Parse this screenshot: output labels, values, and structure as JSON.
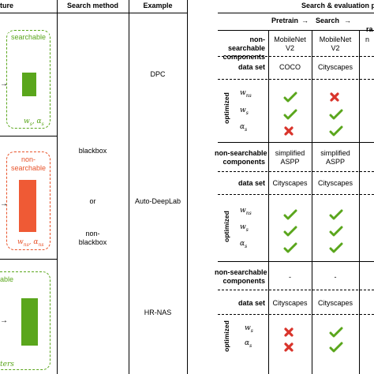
{
  "colors": {
    "green": "#5aa61c",
    "red": "#e8532a",
    "cross": "#d9342b",
    "tick": "#5aa61c"
  },
  "left_table": {
    "headers": {
      "structure": "ture",
      "method": "Search method",
      "example": "Example"
    },
    "rows": [
      {
        "label": "searchable",
        "params": "w_s, α_s",
        "example": "DPC"
      },
      {
        "label": "non-\nsearchable",
        "params": "w_ns, α_ns",
        "example": "Auto-DeepLab"
      },
      {
        "label": "able",
        "params": "ters",
        "example": "HR-NAS"
      }
    ],
    "method_lines": [
      "blackbox",
      "or",
      "non-",
      "blackbox"
    ]
  },
  "right_table": {
    "title": "Search & evaluation p",
    "subheaders": {
      "pretrain": "Pretrain",
      "arrow": "→",
      "search": "Search",
      "arrow2": "→",
      "ra": "ra"
    },
    "blocks": [
      {
        "non_searchable_label": [
          "non-searchable",
          "components"
        ],
        "non_searchable_values": [
          [
            "MobileNet",
            "V2"
          ],
          [
            "MobileNet",
            "V2"
          ],
          [
            "n"
          ]
        ],
        "dataset_label": "data set",
        "dataset_values": [
          "COCO",
          "Cityscapes"
        ],
        "optimized_label": "optimized",
        "params": [
          {
            "sym": "w",
            "sub": "ns",
            "marks": [
              "tick",
              "cross"
            ]
          },
          {
            "sym": "w",
            "sub": "s",
            "marks": [
              "tick",
              "tick"
            ]
          },
          {
            "sym": "α",
            "sub": "s",
            "marks": [
              "cross",
              "tick"
            ]
          }
        ]
      },
      {
        "non_searchable_label": [
          "non-searchable",
          "components"
        ],
        "non_searchable_values": [
          [
            "simplified",
            "ASPP"
          ],
          [
            "simplified",
            "ASPP"
          ]
        ],
        "dataset_label": "data set",
        "dataset_values": [
          "Cityscapes",
          "Cityscapes"
        ],
        "optimized_label": "optimized",
        "params": [
          {
            "sym": "w",
            "sub": "ns",
            "marks": [
              "tick",
              "tick"
            ]
          },
          {
            "sym": "w",
            "sub": "s",
            "marks": [
              "tick",
              "tick"
            ]
          },
          {
            "sym": "α",
            "sub": "s",
            "marks": [
              "tick",
              "tick"
            ]
          }
        ]
      },
      {
        "non_searchable_label": [
          "non-searchable",
          "components"
        ],
        "non_searchable_values": [
          [
            "-"
          ],
          [
            "-"
          ]
        ],
        "dataset_label": "data set",
        "dataset_values": [
          "Cityscapes",
          "Cityscapes"
        ],
        "optimized_label": "optimized",
        "params": [
          {
            "sym": "w",
            "sub": "s",
            "marks": [
              "cross",
              "tick"
            ]
          },
          {
            "sym": "α",
            "sub": "s",
            "marks": [
              "cross",
              "tick"
            ]
          }
        ]
      }
    ]
  }
}
